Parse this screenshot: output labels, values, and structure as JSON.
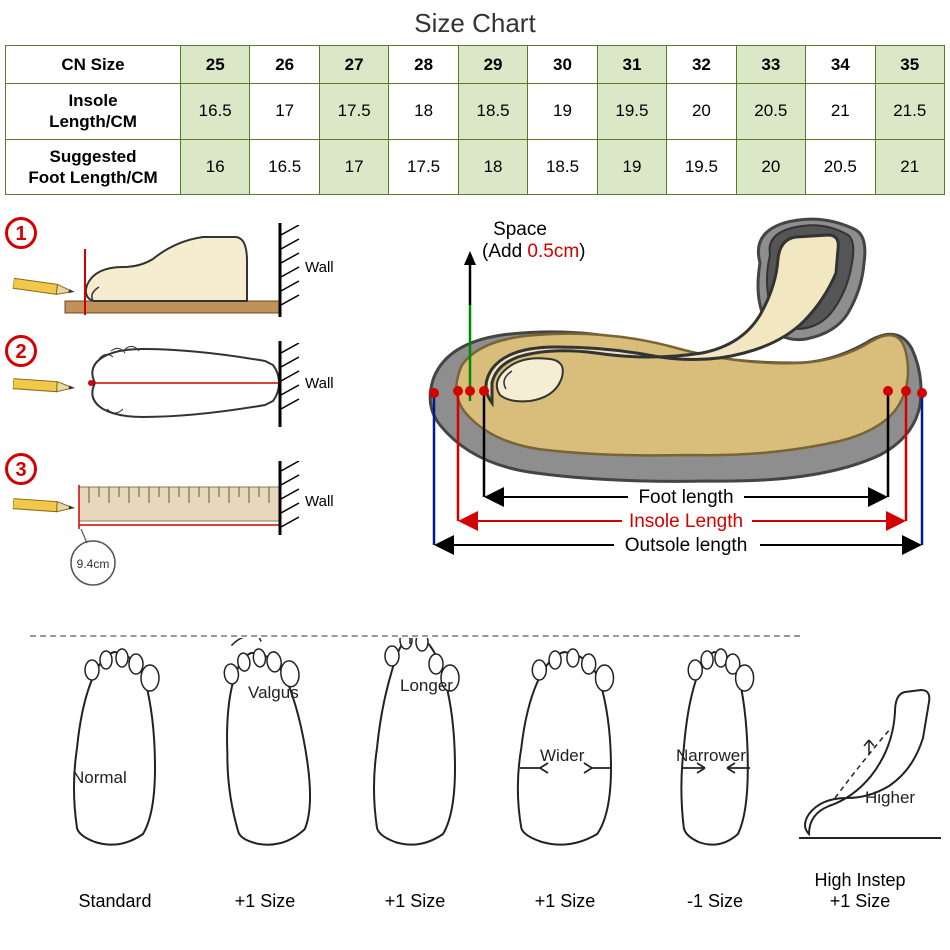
{
  "title": "Size Chart",
  "table": {
    "header_label": "CN Size",
    "rows": [
      {
        "label": "Insole\nLength/CM"
      },
      {
        "label": "Suggested\nFoot Length/CM"
      }
    ],
    "columns": [
      "25",
      "26",
      "27",
      "28",
      "29",
      "30",
      "31",
      "32",
      "33",
      "34",
      "35"
    ],
    "insole": [
      "16.5",
      "17",
      "17.5",
      "18",
      "18.5",
      "19",
      "19.5",
      "20",
      "20.5",
      "21",
      "21.5"
    ],
    "suggested": [
      "16",
      "16.5",
      "17",
      "17.5",
      "18",
      "18.5",
      "19",
      "19.5",
      "20",
      "20.5",
      "21"
    ],
    "shaded_cols": [
      0,
      2,
      4,
      6,
      8,
      10
    ],
    "border_color": "#5a7a2a",
    "shade_color": "#dbe8c8"
  },
  "steps": {
    "labels": [
      "1",
      "2",
      "3"
    ],
    "wall_text": "Wall",
    "ruler_mark": "9.4cm"
  },
  "shoe_diagram": {
    "space_lines": [
      "Space",
      "(Add ",
      "0.5cm",
      ")"
    ],
    "foot_length": "Foot length",
    "insole_length": "Insole Length",
    "outsole_length": "Outsole length",
    "colors": {
      "foot_line": "#000000",
      "insole_line": "#d40000",
      "outsole_line": "#001b8a",
      "space_marker": "#008a00",
      "dot": "#d40000",
      "sole_gray": "#8e8e8e",
      "insole_fill": "#d8be7a",
      "foot_fill": "#f1e7c1",
      "dark_gray": "#555555"
    }
  },
  "foot_types": {
    "items": [
      {
        "name": "Normal",
        "adj": "Standard"
      },
      {
        "name": "Valgus",
        "adj": "+1 Size"
      },
      {
        "name": "Longer",
        "adj": "+1 Size"
      },
      {
        "name": "Wider",
        "adj": "+1 Size"
      },
      {
        "name": "Narrower",
        "adj": "-1 Size"
      },
      {
        "name": "Higher",
        "adj": "High Instep\n+1 Size"
      }
    ]
  }
}
